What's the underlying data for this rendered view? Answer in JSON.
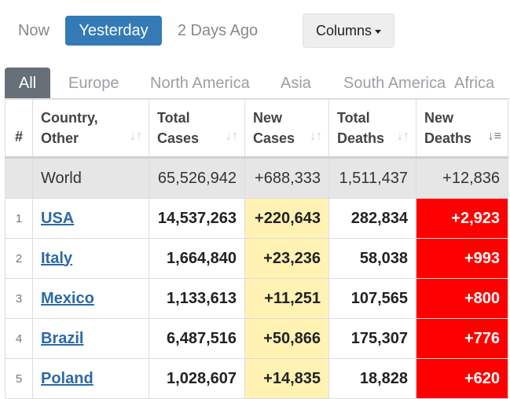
{
  "day_tabs": {
    "now": "Now",
    "yesterday": "Yesterday",
    "two_days_ago": "2 Days Ago"
  },
  "columns_button": {
    "label": "Columns"
  },
  "region_tabs": [
    "All",
    "Europe",
    "North America",
    "Asia",
    "South America",
    "Africa"
  ],
  "table": {
    "headers": {
      "index": "#",
      "country_line1": "Country,",
      "country_line2": "Other",
      "total_cases_line1": "Total",
      "total_cases_line2": "Cases",
      "new_cases_line1": "New",
      "new_cases_line2": "Cases",
      "total_deaths_line1": "Total",
      "total_deaths_line2": "Deaths",
      "new_deaths_line1": "New",
      "new_deaths_line2": "Deaths"
    },
    "world": {
      "name": "World",
      "total_cases": "65,526,942",
      "new_cases": "+688,333",
      "total_deaths": "1,511,437",
      "new_deaths": "+12,836"
    },
    "rows": [
      {
        "index": "1",
        "country": "USA",
        "total_cases": "14,537,263",
        "new_cases": "+220,643",
        "total_deaths": "282,834",
        "new_deaths": "+2,923"
      },
      {
        "index": "2",
        "country": "Italy",
        "total_cases": "1,664,840",
        "new_cases": "+23,236",
        "total_deaths": "58,038",
        "new_deaths": "+993"
      },
      {
        "index": "3",
        "country": "Mexico",
        "total_cases": "1,133,613",
        "new_cases": "+11,251",
        "total_deaths": "107,565",
        "new_deaths": "+800"
      },
      {
        "index": "4",
        "country": "Brazil",
        "total_cases": "6,487,516",
        "new_cases": "+50,866",
        "total_deaths": "175,307",
        "new_deaths": "+776"
      },
      {
        "index": "5",
        "country": "Poland",
        "total_cases": "1,028,607",
        "new_cases": "+14,835",
        "total_deaths": "18,828",
        "new_deaths": "+620"
      }
    ]
  },
  "colors": {
    "active_day": "#337ab7",
    "active_region_tab": "#677078",
    "new_cases_bg": "#fff2b3",
    "new_deaths_bg": "#ff0000",
    "link": "#2a6aa8"
  },
  "icons": {
    "sort": "sort-arrows-icon",
    "sort_desc": "sort-descending-icon",
    "caret": "caret-down-icon"
  }
}
